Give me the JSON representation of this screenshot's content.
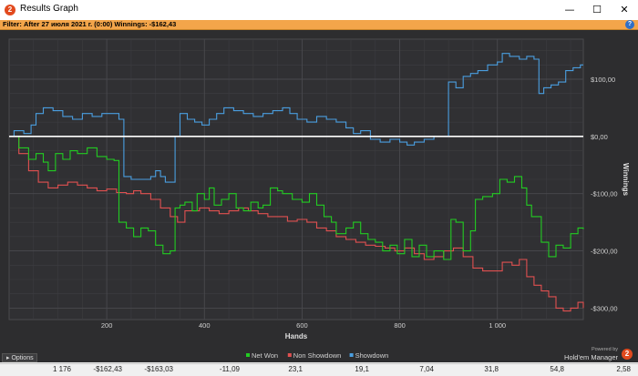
{
  "window": {
    "title": "Results Graph",
    "app_icon": "hm2-logo-icon",
    "minimize_glyph": "—",
    "maximize_glyph": "☐",
    "close_glyph": "✕"
  },
  "filter": {
    "label": "Filter:",
    "text": "After 27 июля 2021 г. (0:00)  Winnings: -$162,43",
    "help_glyph": "?"
  },
  "options": {
    "label": "Options",
    "arrow": "▸"
  },
  "branding": {
    "powered_by": "Powered by",
    "name": "Hold'em Manager",
    "logo": "2"
  },
  "colors": {
    "background": "#2d2d2f",
    "net_won": "#22cc22",
    "non_showdown": "#e05050",
    "showdown": "#4a9ee0",
    "zero_line": "#ffffff",
    "accent": "#f3a54a"
  },
  "chart_data": {
    "type": "line",
    "xlabel": "Hands",
    "ylabel": "Winnings",
    "xlim": [
      0,
      1176
    ],
    "ylim": [
      -320,
      170
    ],
    "x_ticks": [
      200,
      400,
      600,
      800,
      1000
    ],
    "x_tick_labels": [
      "200",
      "400",
      "600",
      "800",
      "1 000"
    ],
    "y_ticks": [
      100,
      0,
      -100,
      -200,
      -300
    ],
    "y_tick_labels": [
      "$100,00",
      "$0,00",
      "-$100,00",
      "-$200,00",
      "-$300,00"
    ],
    "grid": true,
    "legend": "bottom-center",
    "series": [
      {
        "name": "Net Won",
        "key": "net_won",
        "points": [
          [
            0,
            0
          ],
          [
            20,
            -20
          ],
          [
            40,
            -40
          ],
          [
            55,
            -30
          ],
          [
            70,
            -45
          ],
          [
            80,
            -60
          ],
          [
            95,
            -30
          ],
          [
            110,
            -40
          ],
          [
            125,
            -25
          ],
          [
            140,
            -30
          ],
          [
            160,
            -20
          ],
          [
            180,
            -35
          ],
          [
            200,
            -40
          ],
          [
            215,
            -42
          ],
          [
            225,
            -150
          ],
          [
            240,
            -160
          ],
          [
            255,
            -175
          ],
          [
            270,
            -160
          ],
          [
            285,
            -165
          ],
          [
            300,
            -190
          ],
          [
            315,
            -205
          ],
          [
            330,
            -200
          ],
          [
            340,
            -125
          ],
          [
            350,
            -120
          ],
          [
            360,
            -115
          ],
          [
            375,
            -130
          ],
          [
            385,
            -100
          ],
          [
            400,
            -110
          ],
          [
            410,
            -90
          ],
          [
            420,
            -120
          ],
          [
            435,
            -110
          ],
          [
            450,
            -100
          ],
          [
            465,
            -125
          ],
          [
            480,
            -130
          ],
          [
            495,
            -115
          ],
          [
            510,
            -125
          ],
          [
            520,
            -120
          ],
          [
            535,
            -90
          ],
          [
            550,
            -95
          ],
          [
            560,
            -100
          ],
          [
            580,
            -110
          ],
          [
            600,
            -115
          ],
          [
            615,
            -100
          ],
          [
            630,
            -120
          ],
          [
            645,
            -140
          ],
          [
            660,
            -150
          ],
          [
            670,
            -170
          ],
          [
            690,
            -160
          ],
          [
            705,
            -150
          ],
          [
            720,
            -170
          ],
          [
            735,
            -180
          ],
          [
            750,
            -185
          ],
          [
            765,
            -200
          ],
          [
            780,
            -190
          ],
          [
            795,
            -205
          ],
          [
            810,
            -180
          ],
          [
            825,
            -210
          ],
          [
            840,
            -190
          ],
          [
            855,
            -210
          ],
          [
            870,
            -200
          ],
          [
            890,
            -215
          ],
          [
            905,
            -145
          ],
          [
            915,
            -150
          ],
          [
            930,
            -200
          ],
          [
            945,
            -165
          ],
          [
            955,
            -110
          ],
          [
            970,
            -105
          ],
          [
            990,
            -100
          ],
          [
            1005,
            -75
          ],
          [
            1020,
            -80
          ],
          [
            1035,
            -70
          ],
          [
            1050,
            -90
          ],
          [
            1060,
            -120
          ],
          [
            1070,
            -140
          ],
          [
            1080,
            -140
          ],
          [
            1090,
            -185
          ],
          [
            1105,
            -210
          ],
          [
            1120,
            -190
          ],
          [
            1135,
            -195
          ],
          [
            1150,
            -170
          ],
          [
            1165,
            -160
          ],
          [
            1176,
            -162
          ]
        ]
      },
      {
        "name": "Non Showdown",
        "key": "non_showdown",
        "points": [
          [
            0,
            0
          ],
          [
            20,
            -30
          ],
          [
            40,
            -60
          ],
          [
            60,
            -80
          ],
          [
            80,
            -90
          ],
          [
            100,
            -85
          ],
          [
            120,
            -80
          ],
          [
            140,
            -85
          ],
          [
            160,
            -90
          ],
          [
            180,
            -95
          ],
          [
            200,
            -92
          ],
          [
            220,
            -98
          ],
          [
            240,
            -100
          ],
          [
            255,
            -95
          ],
          [
            270,
            -100
          ],
          [
            290,
            -110
          ],
          [
            310,
            -125
          ],
          [
            330,
            -140
          ],
          [
            345,
            -150
          ],
          [
            360,
            -130
          ],
          [
            375,
            -130
          ],
          [
            390,
            -125
          ],
          [
            410,
            -130
          ],
          [
            430,
            -135
          ],
          [
            450,
            -130
          ],
          [
            470,
            -125
          ],
          [
            490,
            -130
          ],
          [
            510,
            -135
          ],
          [
            530,
            -140
          ],
          [
            550,
            -140
          ],
          [
            570,
            -148
          ],
          [
            590,
            -145
          ],
          [
            610,
            -150
          ],
          [
            630,
            -160
          ],
          [
            650,
            -165
          ],
          [
            670,
            -175
          ],
          [
            690,
            -180
          ],
          [
            710,
            -185
          ],
          [
            730,
            -190
          ],
          [
            750,
            -192
          ],
          [
            770,
            -195
          ],
          [
            790,
            -200
          ],
          [
            810,
            -195
          ],
          [
            830,
            -205
          ],
          [
            850,
            -215
          ],
          [
            870,
            -210
          ],
          [
            890,
            -200
          ],
          [
            910,
            -195
          ],
          [
            930,
            -210
          ],
          [
            950,
            -230
          ],
          [
            970,
            -235
          ],
          [
            990,
            -235
          ],
          [
            1010,
            -220
          ],
          [
            1030,
            -225
          ],
          [
            1045,
            -215
          ],
          [
            1060,
            -245
          ],
          [
            1075,
            -260
          ],
          [
            1090,
            -270
          ],
          [
            1105,
            -280
          ],
          [
            1120,
            -300
          ],
          [
            1135,
            -305
          ],
          [
            1150,
            -300
          ],
          [
            1165,
            -290
          ],
          [
            1176,
            -300
          ]
        ]
      },
      {
        "name": "Showdown",
        "key": "showdown",
        "points": [
          [
            0,
            0
          ],
          [
            10,
            10
          ],
          [
            30,
            5
          ],
          [
            45,
            20
          ],
          [
            55,
            40
          ],
          [
            70,
            50
          ],
          [
            90,
            45
          ],
          [
            110,
            35
          ],
          [
            130,
            30
          ],
          [
            150,
            40
          ],
          [
            170,
            35
          ],
          [
            190,
            40
          ],
          [
            210,
            40
          ],
          [
            225,
            30
          ],
          [
            235,
            -70
          ],
          [
            250,
            -75
          ],
          [
            270,
            -75
          ],
          [
            290,
            -70
          ],
          [
            300,
            -60
          ],
          [
            310,
            -70
          ],
          [
            320,
            -80
          ],
          [
            330,
            -80
          ],
          [
            340,
            0
          ],
          [
            350,
            40
          ],
          [
            365,
            30
          ],
          [
            380,
            25
          ],
          [
            395,
            20
          ],
          [
            410,
            30
          ],
          [
            425,
            40
          ],
          [
            440,
            50
          ],
          [
            460,
            45
          ],
          [
            480,
            40
          ],
          [
            500,
            35
          ],
          [
            520,
            40
          ],
          [
            540,
            45
          ],
          [
            560,
            50
          ],
          [
            575,
            40
          ],
          [
            590,
            30
          ],
          [
            610,
            25
          ],
          [
            630,
            35
          ],
          [
            650,
            30
          ],
          [
            670,
            25
          ],
          [
            690,
            15
          ],
          [
            705,
            5
          ],
          [
            720,
            10
          ],
          [
            740,
            -5
          ],
          [
            760,
            -10
          ],
          [
            780,
            -5
          ],
          [
            800,
            -10
          ],
          [
            815,
            -15
          ],
          [
            830,
            -10
          ],
          [
            850,
            -5
          ],
          [
            870,
            0
          ],
          [
            890,
            0
          ],
          [
            900,
            95
          ],
          [
            915,
            85
          ],
          [
            930,
            105
          ],
          [
            945,
            110
          ],
          [
            960,
            115
          ],
          [
            980,
            125
          ],
          [
            1000,
            130
          ],
          [
            1010,
            145
          ],
          [
            1025,
            140
          ],
          [
            1045,
            135
          ],
          [
            1060,
            140
          ],
          [
            1075,
            135
          ],
          [
            1085,
            75
          ],
          [
            1095,
            85
          ],
          [
            1110,
            90
          ],
          [
            1125,
            95
          ],
          [
            1140,
            115
          ],
          [
            1155,
            120
          ],
          [
            1170,
            125
          ],
          [
            1176,
            125
          ]
        ]
      }
    ]
  },
  "stats": [
    "1 176",
    "-$162,43",
    "-$163,03",
    "-11,09",
    "23,1",
    "19,1",
    "7,04",
    "31,8",
    "54,8",
    "2,58"
  ]
}
